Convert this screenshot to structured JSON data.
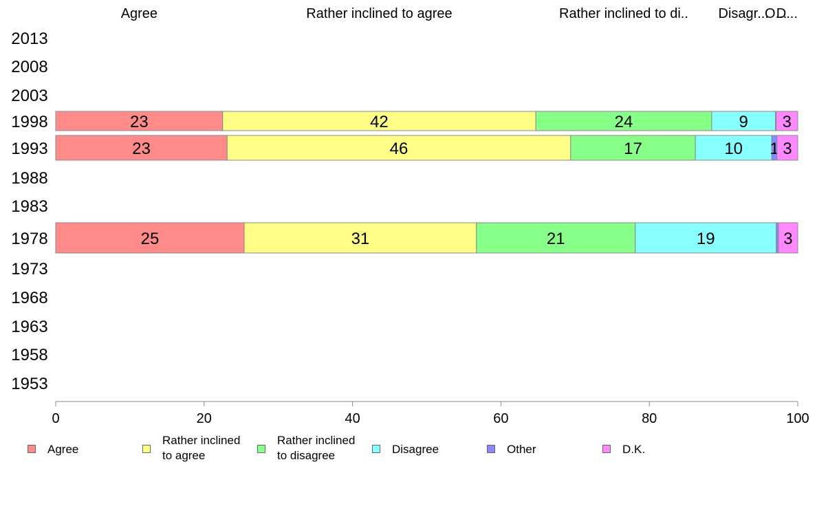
{
  "chart_data": {
    "type": "bar",
    "orientation": "horizontal",
    "stacked": true,
    "categories": [
      "2013",
      "2008",
      "2003",
      "1998",
      "1993",
      "1988",
      "1983",
      "1978",
      "1973",
      "1968",
      "1963",
      "1958",
      "1953"
    ],
    "series": [
      {
        "name": "Agree",
        "header": "Agree",
        "legend": "Agree",
        "color": "#ff8a8a",
        "values": [
          null,
          null,
          null,
          22.5,
          23.1,
          null,
          null,
          25.4,
          null,
          null,
          null,
          null,
          null
        ],
        "labels": [
          "",
          "",
          "",
          "23",
          "23",
          "",
          "",
          "25",
          "",
          "",
          "",
          "",
          ""
        ]
      },
      {
        "name": "Rather inclined to agree",
        "header": "Rather inclined to agree",
        "legend": "Rather inclined\nto agree",
        "color": "#ffff88",
        "values": [
          null,
          null,
          null,
          42.2,
          46.3,
          null,
          null,
          31.3,
          null,
          null,
          null,
          null,
          null
        ],
        "labels": [
          "",
          "",
          "",
          "42",
          "46",
          "",
          "",
          "31",
          "",
          "",
          "",
          "",
          ""
        ]
      },
      {
        "name": "Rather inclined to disagree",
        "header": "Rather inclined to di..",
        "legend": "Rather inclined\nto disagree",
        "color": "#88ff88",
        "values": [
          null,
          null,
          null,
          23.7,
          16.8,
          null,
          null,
          21.4,
          null,
          null,
          null,
          null,
          null
        ],
        "labels": [
          "",
          "",
          "",
          "24",
          "17",
          "",
          "",
          "21",
          "",
          "",
          "",
          "",
          ""
        ]
      },
      {
        "name": "Disagree",
        "header": "Disagr...",
        "legend": "Disagree",
        "color": "#88ffff",
        "values": [
          null,
          null,
          null,
          8.6,
          10.3,
          null,
          null,
          19.0,
          null,
          null,
          null,
          null,
          null
        ],
        "labels": [
          "",
          "",
          "",
          "9",
          "10",
          "",
          "",
          "19",
          "",
          "",
          "",
          "",
          ""
        ]
      },
      {
        "name": "Other",
        "header": "O...",
        "legend": "Other",
        "color": "#8888ff",
        "values": [
          null,
          null,
          null,
          0.1,
          0.7,
          null,
          null,
          0.3,
          null,
          null,
          null,
          null,
          null
        ],
        "labels": [
          "",
          "",
          "",
          "",
          "1",
          "",
          "",
          "",
          "",
          "",
          "",
          "",
          ""
        ]
      },
      {
        "name": "D.K.",
        "header": "D...",
        "legend": "D.K.",
        "color": "#ff88ff",
        "values": [
          null,
          null,
          null,
          2.9,
          2.8,
          null,
          null,
          2.6,
          null,
          null,
          null,
          null,
          null
        ],
        "labels": [
          "",
          "",
          "",
          "3",
          "3",
          "",
          "",
          "3",
          "",
          "",
          "",
          "",
          ""
        ]
      }
    ],
    "xlim": [
      0,
      100
    ],
    "xticks": [
      "0",
      "20",
      "40",
      "60",
      "80",
      "100"
    ],
    "xlabel": "",
    "ylabel": "",
    "title": "",
    "grid": false,
    "legend_position": "bottom"
  }
}
